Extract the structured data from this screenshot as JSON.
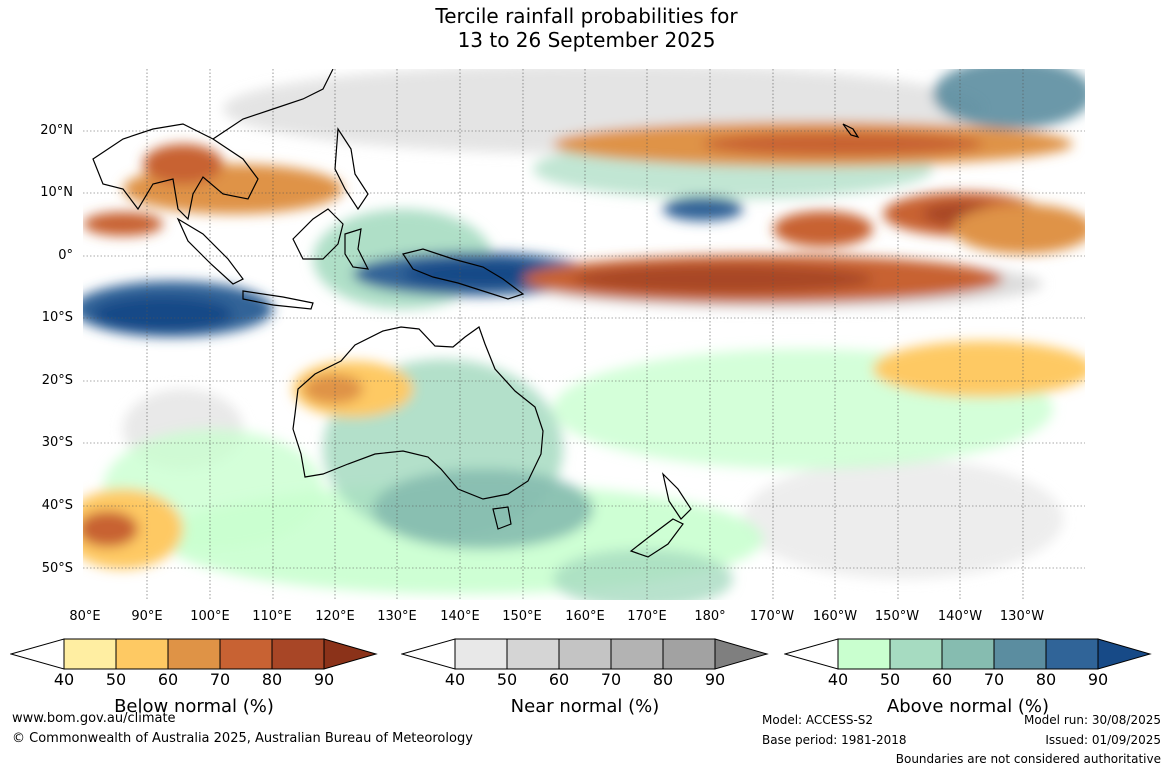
{
  "title_lines": [
    "Tercile rainfall probabilities for",
    "13 to 26 September 2025"
  ],
  "map": {
    "lat_labels": [
      "20°N",
      "10°N",
      "0°",
      "10°S",
      "20°S",
      "30°S",
      "40°S",
      "50°S"
    ],
    "lon_labels": [
      "80°E",
      "90°E",
      "100°E",
      "110°E",
      "120°E",
      "130°E",
      "140°E",
      "150°E",
      "160°E",
      "170°E",
      "180°",
      "170°W",
      "160°W",
      "150°W",
      "140°W",
      "130°W"
    ]
  },
  "colorbars": [
    {
      "title": "Below normal (%)",
      "ticks": [
        "40",
        "50",
        "60",
        "70",
        "80",
        "90"
      ],
      "colors": [
        "#ffeea2",
        "#fec963",
        "#df9346",
        "#c86233",
        "#a84626",
        "#8b3219"
      ]
    },
    {
      "title": "Near normal (%)",
      "ticks": [
        "40",
        "50",
        "60",
        "70",
        "80",
        "90"
      ],
      "colors": [
        "#e8e8e8",
        "#d5d5d5",
        "#c4c4c4",
        "#b3b3b3",
        "#a2a2a2",
        "#7f7f7f"
      ]
    },
    {
      "title": "Above normal (%)",
      "ticks": [
        "40",
        "50",
        "60",
        "70",
        "80",
        "90"
      ],
      "colors": [
        "#c9ffcf",
        "#a6dbc1",
        "#86bcb0",
        "#5b8da0",
        "#306498",
        "#174a87"
      ]
    }
  ],
  "footer": {
    "website": "www.bom.gov.au/climate",
    "copyright": "© Commonwealth of Australia 2025, Australian Bureau of Meteorology",
    "model": "Model: ACCESS-S2",
    "base_period": "Base period: 1981-2018",
    "model_run": "Model run: 30/08/2025",
    "issued": "Issued: 01/09/2025",
    "boundaries": "Boundaries are not considered authoritative"
  }
}
